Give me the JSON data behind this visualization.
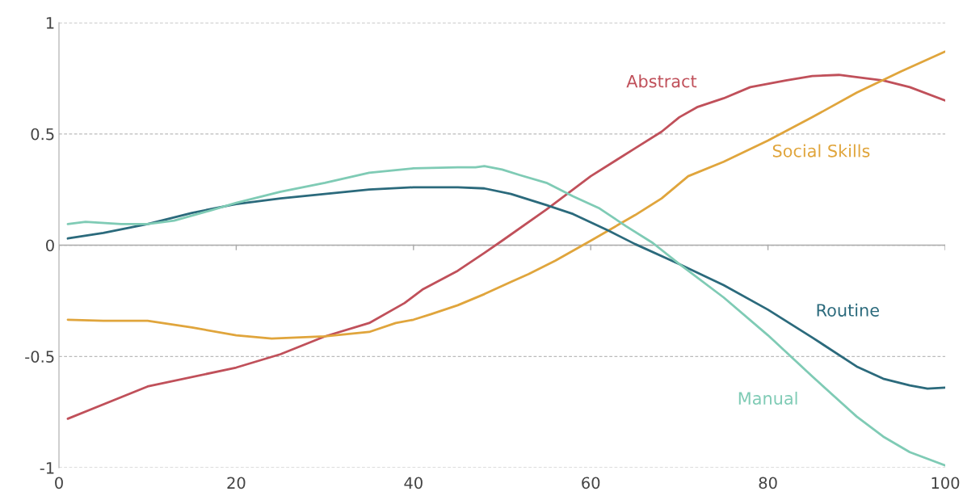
{
  "chart_data": {
    "type": "line",
    "series": [
      {
        "name": "Abstract",
        "color": "#c0505a",
        "x": [
          1,
          10,
          20,
          25,
          30,
          35,
          39,
          41,
          45,
          48,
          50,
          55,
          60,
          65,
          68,
          70,
          72,
          75,
          78,
          82,
          85,
          88,
          91,
          93,
          96,
          100
        ],
        "values": [
          -0.78,
          -0.635,
          -0.55,
          -0.49,
          -0.41,
          -0.35,
          -0.26,
          -0.2,
          -0.115,
          -0.035,
          0.02,
          0.16,
          0.31,
          0.435,
          0.51,
          0.575,
          0.62,
          0.66,
          0.71,
          0.74,
          0.76,
          0.765,
          0.75,
          0.74,
          0.71,
          0.65
        ]
      },
      {
        "name": "Social Skills",
        "color": "#e0a53c",
        "x": [
          1,
          5,
          10,
          15,
          20,
          24,
          30,
          35,
          38,
          40,
          42,
          45,
          48,
          51,
          53,
          56,
          60,
          65,
          68,
          71,
          75,
          80,
          85,
          90,
          95,
          100
        ],
        "values": [
          -0.335,
          -0.34,
          -0.34,
          -0.37,
          -0.405,
          -0.42,
          -0.41,
          -0.39,
          -0.35,
          -0.335,
          -0.31,
          -0.27,
          -0.22,
          -0.165,
          -0.13,
          -0.07,
          0.02,
          0.135,
          0.21,
          0.31,
          0.375,
          0.47,
          0.575,
          0.685,
          0.78,
          0.87
        ]
      },
      {
        "name": "Routine",
        "color": "#2b6a7c",
        "x": [
          1,
          5,
          10,
          15,
          20,
          25,
          30,
          35,
          40,
          45,
          48,
          51,
          55,
          58,
          62,
          65,
          70,
          75,
          80,
          85,
          90,
          93,
          96,
          98,
          100
        ],
        "values": [
          0.03,
          0.055,
          0.095,
          0.145,
          0.185,
          0.21,
          0.23,
          0.25,
          0.26,
          0.26,
          0.255,
          0.23,
          0.18,
          0.14,
          0.065,
          0.005,
          -0.085,
          -0.18,
          -0.29,
          -0.415,
          -0.545,
          -0.6,
          -0.63,
          -0.645,
          -0.64
        ]
      },
      {
        "name": "Manual",
        "color": "#7fcbb5",
        "x": [
          1,
          3,
          7,
          10,
          13,
          17,
          20,
          25,
          30,
          35,
          40,
          45,
          47,
          48,
          50,
          52,
          55,
          58,
          61,
          64,
          67,
          70,
          75,
          80,
          85,
          90,
          93,
          96,
          100
        ],
        "values": [
          0.095,
          0.105,
          0.095,
          0.095,
          0.11,
          0.155,
          0.19,
          0.24,
          0.28,
          0.325,
          0.345,
          0.35,
          0.35,
          0.355,
          0.34,
          0.315,
          0.28,
          0.22,
          0.165,
          0.085,
          0.01,
          -0.085,
          -0.235,
          -0.405,
          -0.59,
          -0.77,
          -0.86,
          -0.93,
          -0.99
        ]
      }
    ],
    "xlim": [
      0,
      100
    ],
    "xticks": [
      0,
      20,
      40,
      60,
      80,
      100
    ],
    "ylim": [
      -1,
      1
    ],
    "yticks": [
      -1,
      -0.5,
      0,
      0.5,
      1
    ],
    "ref_lines": [
      {
        "axis": "y",
        "value": 0,
        "color": "#aaaaaa"
      }
    ],
    "grid": "y",
    "legend": false
  }
}
